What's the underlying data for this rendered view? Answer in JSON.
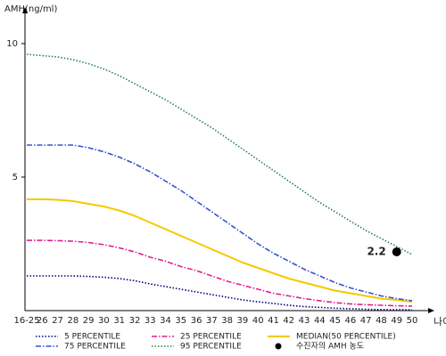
{
  "chart_data": {
    "type": "line",
    "y_label": "AMH(ng/ml)",
    "x_label": "나이",
    "categories": [
      "16-25",
      "26",
      "27",
      "28",
      "29",
      "30",
      "31",
      "32",
      "33",
      "34",
      "35",
      "36",
      "37",
      "38",
      "39",
      "40",
      "41",
      "42",
      "43",
      "44",
      "45",
      "46",
      "47",
      "48",
      "49",
      "50"
    ],
    "ylim": [
      0,
      11.3
    ],
    "yticks": [
      5,
      10
    ],
    "series": [
      {
        "name": "5 PERCENTILE",
        "color": "#000080",
        "dash": "dotted",
        "values": [
          1.3,
          1.3,
          1.3,
          1.3,
          1.28,
          1.25,
          1.2,
          1.12,
          1.0,
          0.9,
          0.8,
          0.7,
          0.6,
          0.5,
          0.4,
          0.33,
          0.27,
          0.2,
          0.15,
          0.12,
          0.09,
          0.07,
          0.05,
          0.04,
          0.03,
          0.03
        ]
      },
      {
        "name": "25 PERCENTILE",
        "color": "#e0208f",
        "dash": "dashdot",
        "values": [
          2.63,
          2.63,
          2.62,
          2.6,
          2.55,
          2.47,
          2.35,
          2.2,
          2.0,
          1.85,
          1.65,
          1.5,
          1.3,
          1.1,
          0.95,
          0.8,
          0.65,
          0.55,
          0.45,
          0.37,
          0.3,
          0.25,
          0.22,
          0.2,
          0.18,
          0.17
        ]
      },
      {
        "name": "MEDIAN(50 PERCENTILE)",
        "color": "#f5c800",
        "dash": "solid",
        "values": [
          4.17,
          4.17,
          4.15,
          4.1,
          4.0,
          3.9,
          3.75,
          3.55,
          3.3,
          3.05,
          2.8,
          2.55,
          2.3,
          2.05,
          1.8,
          1.6,
          1.4,
          1.2,
          1.05,
          0.9,
          0.75,
          0.65,
          0.55,
          0.45,
          0.4,
          0.33
        ]
      },
      {
        "name": "75 PERCENTILE",
        "color": "#3355cc",
        "dash": "dashdot",
        "values": [
          6.2,
          6.2,
          6.2,
          6.2,
          6.1,
          5.95,
          5.75,
          5.5,
          5.2,
          4.85,
          4.5,
          4.1,
          3.7,
          3.3,
          2.9,
          2.5,
          2.15,
          1.85,
          1.55,
          1.3,
          1.05,
          0.85,
          0.7,
          0.55,
          0.45,
          0.37
        ]
      },
      {
        "name": "95 PERCENTILE",
        "color": "#2e7d4f",
        "dash": "dotted",
        "values": [
          9.6,
          9.55,
          9.5,
          9.4,
          9.25,
          9.05,
          8.8,
          8.5,
          8.2,
          7.9,
          7.55,
          7.2,
          6.85,
          6.45,
          6.05,
          5.65,
          5.25,
          4.85,
          4.45,
          4.05,
          3.7,
          3.35,
          3.0,
          2.7,
          2.4,
          2.1
        ]
      }
    ],
    "point": {
      "name": "수진자의 AMH 농도",
      "category": "49",
      "value": 2.2,
      "color": "#000000"
    }
  }
}
